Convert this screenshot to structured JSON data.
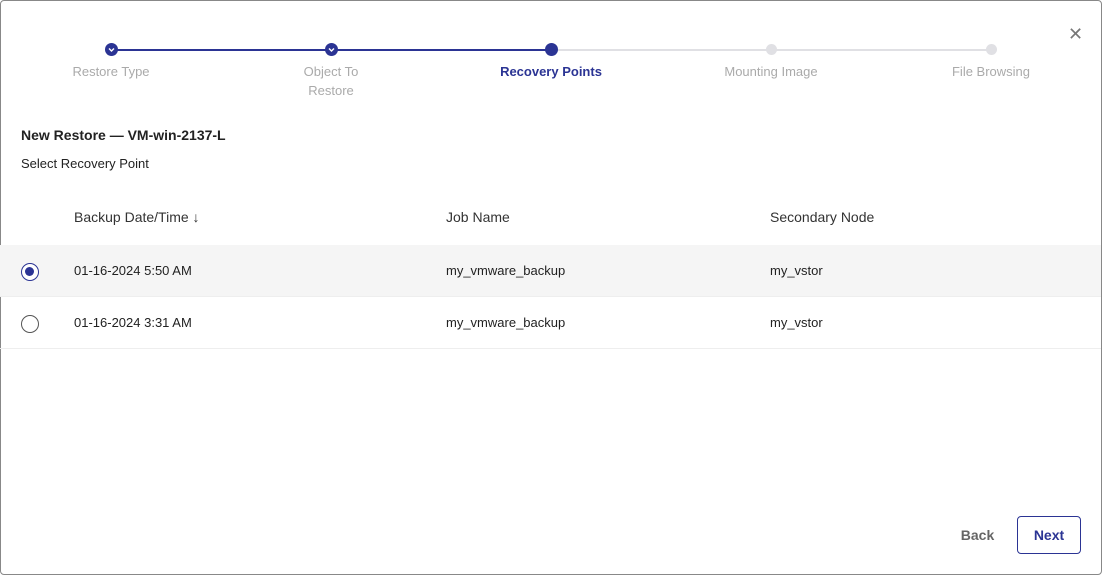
{
  "steps": [
    {
      "label": "Restore Type",
      "state": "done"
    },
    {
      "label": "Object To Restore",
      "state": "done"
    },
    {
      "label": "Recovery Points",
      "state": "current"
    },
    {
      "label": "Mounting Image",
      "state": "todo"
    },
    {
      "label": "File Browsing",
      "state": "todo"
    }
  ],
  "title": "New Restore — VM-win-2137-L",
  "subtitle": "Select Recovery Point",
  "table": {
    "headers": [
      "Backup Date/Time",
      "Job Name",
      "Secondary Node"
    ],
    "sort_icon": "arrow-down-icon",
    "rows": [
      {
        "selected": true,
        "date": "01-16-2024 5:50 AM",
        "job": "my_vmware_backup",
        "node": "my_vstor"
      },
      {
        "selected": false,
        "date": "01-16-2024 3:31 AM",
        "job": "my_vmware_backup",
        "node": "my_vstor"
      }
    ]
  },
  "buttons": {
    "back": "Back",
    "next": "Next"
  },
  "colors": {
    "accent": "#2b3494"
  }
}
